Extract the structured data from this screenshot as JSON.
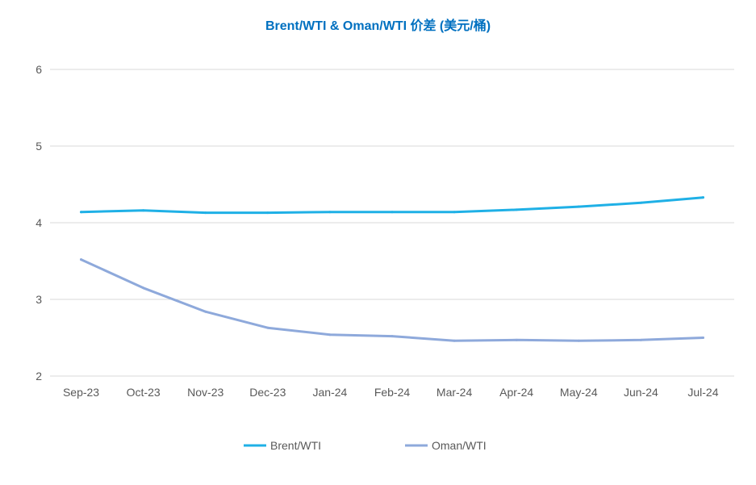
{
  "chart_data": {
    "type": "line",
    "title": "Brent/WTI & Oman/WTI 价差 (美元/桶)",
    "categories": [
      "Sep-23",
      "Oct-23",
      "Nov-23",
      "Dec-23",
      "Jan-24",
      "Feb-24",
      "Mar-24",
      "Apr-24",
      "May-24",
      "Jun-24",
      "Jul-24"
    ],
    "ylim": [
      2,
      6
    ],
    "yticks": [
      2,
      3,
      4,
      5,
      6
    ],
    "grid": true,
    "legend_position": "bottom",
    "series": [
      {
        "name": "Brent/WTI",
        "color": "#1fb0e6",
        "values": [
          4.14,
          4.16,
          4.13,
          4.13,
          4.14,
          4.14,
          4.14,
          4.17,
          4.21,
          4.26,
          4.33
        ]
      },
      {
        "name": "Oman/WTI",
        "color": "#8ea9db",
        "values": [
          3.52,
          3.15,
          2.84,
          2.63,
          2.54,
          2.52,
          2.46,
          2.47,
          2.46,
          2.47,
          2.5
        ]
      }
    ]
  }
}
